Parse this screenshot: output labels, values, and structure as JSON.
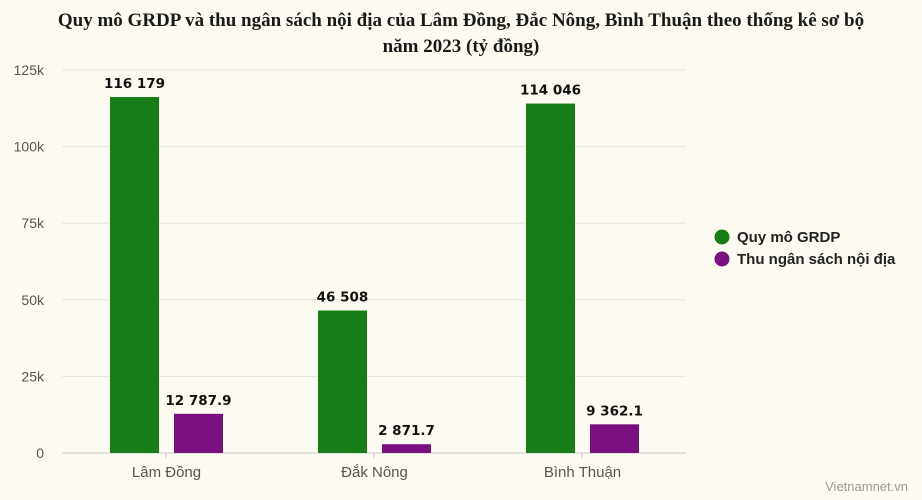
{
  "chart_data": {
    "type": "bar",
    "title_lines": [
      "Quy mô GRDP và thu ngân sách nội địa của Lâm Đồng, Đắc Nông, Bình Thuận theo thống kê sơ bộ",
      "năm 2023 (tỷ đồng)"
    ],
    "categories": [
      "Lâm Đồng",
      "Đắk Nông",
      "Bình Thuận"
    ],
    "series": [
      {
        "name": "Quy mô GRDP",
        "color": "#167d17",
        "values": [
          116179,
          46508,
          114046
        ],
        "labels": [
          "116 179",
          "46 508",
          "114 046"
        ]
      },
      {
        "name": "Thu ngân sách nội địa",
        "color": "#7a0f7f",
        "values": [
          12787.9,
          2871.7,
          9362.1
        ],
        "labels": [
          "12 787.9",
          "2 871.7",
          "9 362.1"
        ]
      }
    ],
    "ylim": [
      0,
      125000
    ],
    "yticks": [
      0,
      25000,
      50000,
      75000,
      100000,
      125000
    ],
    "ytick_labels": [
      "0",
      "25k",
      "50k",
      "75k",
      "100k",
      "125k"
    ],
    "xlabel": "",
    "ylabel": "",
    "grid": true,
    "legend": "right"
  },
  "source": "Vietnamnet.vn"
}
